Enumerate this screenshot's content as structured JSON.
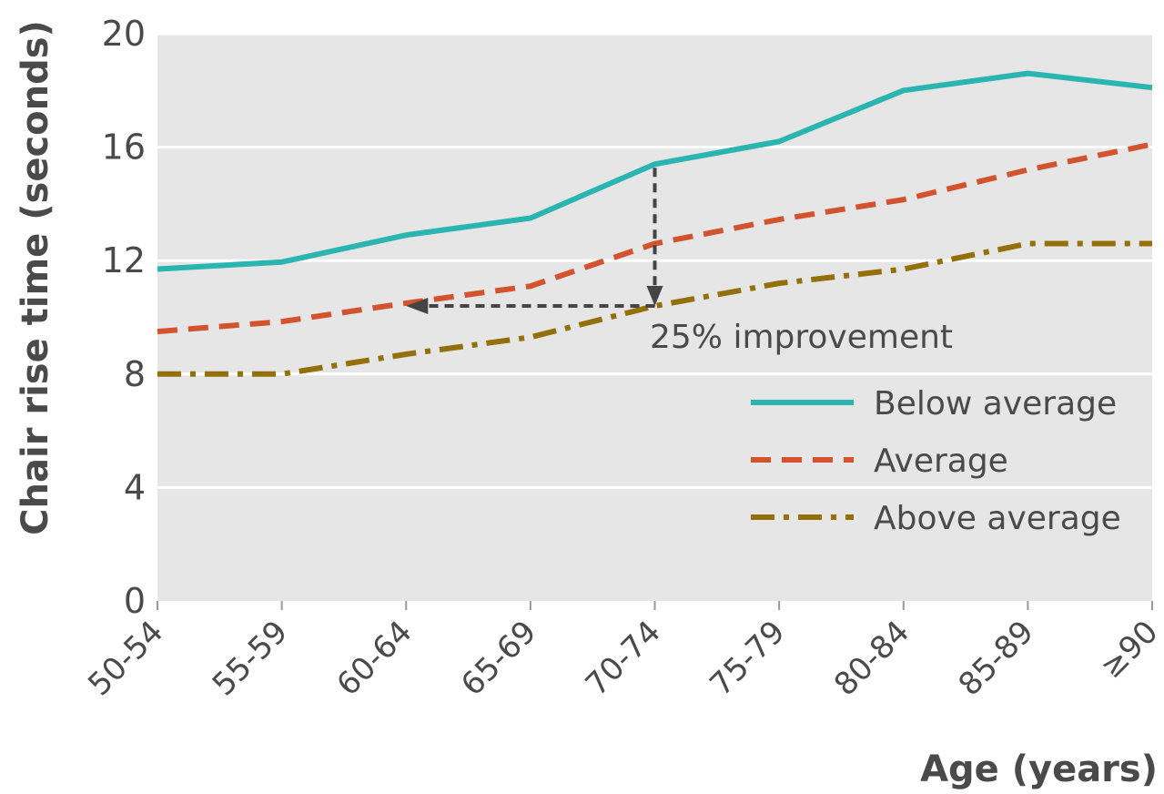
{
  "chart_data": {
    "type": "line",
    "title": "",
    "xlabel": "Age (years)",
    "ylabel": "Chair rise time (seconds)",
    "categories": [
      "50-54",
      "55-59",
      "60-64",
      "65-69",
      "70-74",
      "75-79",
      "80-84",
      "85-89",
      "≥90"
    ],
    "ylim": [
      0,
      20
    ],
    "yticks": [
      0,
      4,
      8,
      12,
      16,
      20
    ],
    "grid": "horizontal",
    "legend_position": "bottom-right",
    "series": [
      {
        "name": "Below average",
        "color": "#2bb5b0",
        "style": "solid",
        "values": [
          11.7,
          11.95,
          12.9,
          13.5,
          15.4,
          16.2,
          18.0,
          18.6,
          18.1
        ]
      },
      {
        "name": "Average",
        "color": "#d4532f",
        "style": "dashed",
        "values": [
          9.5,
          9.85,
          10.5,
          11.1,
          12.6,
          13.45,
          14.15,
          15.2,
          16.1
        ]
      },
      {
        "name": "Above average",
        "color": "#94700b",
        "style": "dash-dot",
        "values": [
          8.0,
          8.0,
          8.7,
          9.3,
          10.4,
          11.2,
          11.7,
          12.6,
          12.6
        ]
      }
    ],
    "annotation": {
      "text": "25% improvement",
      "arrow_x_category": "70-74",
      "arrow_from_value": 15.4,
      "arrow_to_value": 10.4,
      "horizontal_arrow_to_category": "60-64",
      "arrow_color": "#444444"
    },
    "background_color": "#e6e6e6",
    "grid_color": "#ffffff"
  }
}
